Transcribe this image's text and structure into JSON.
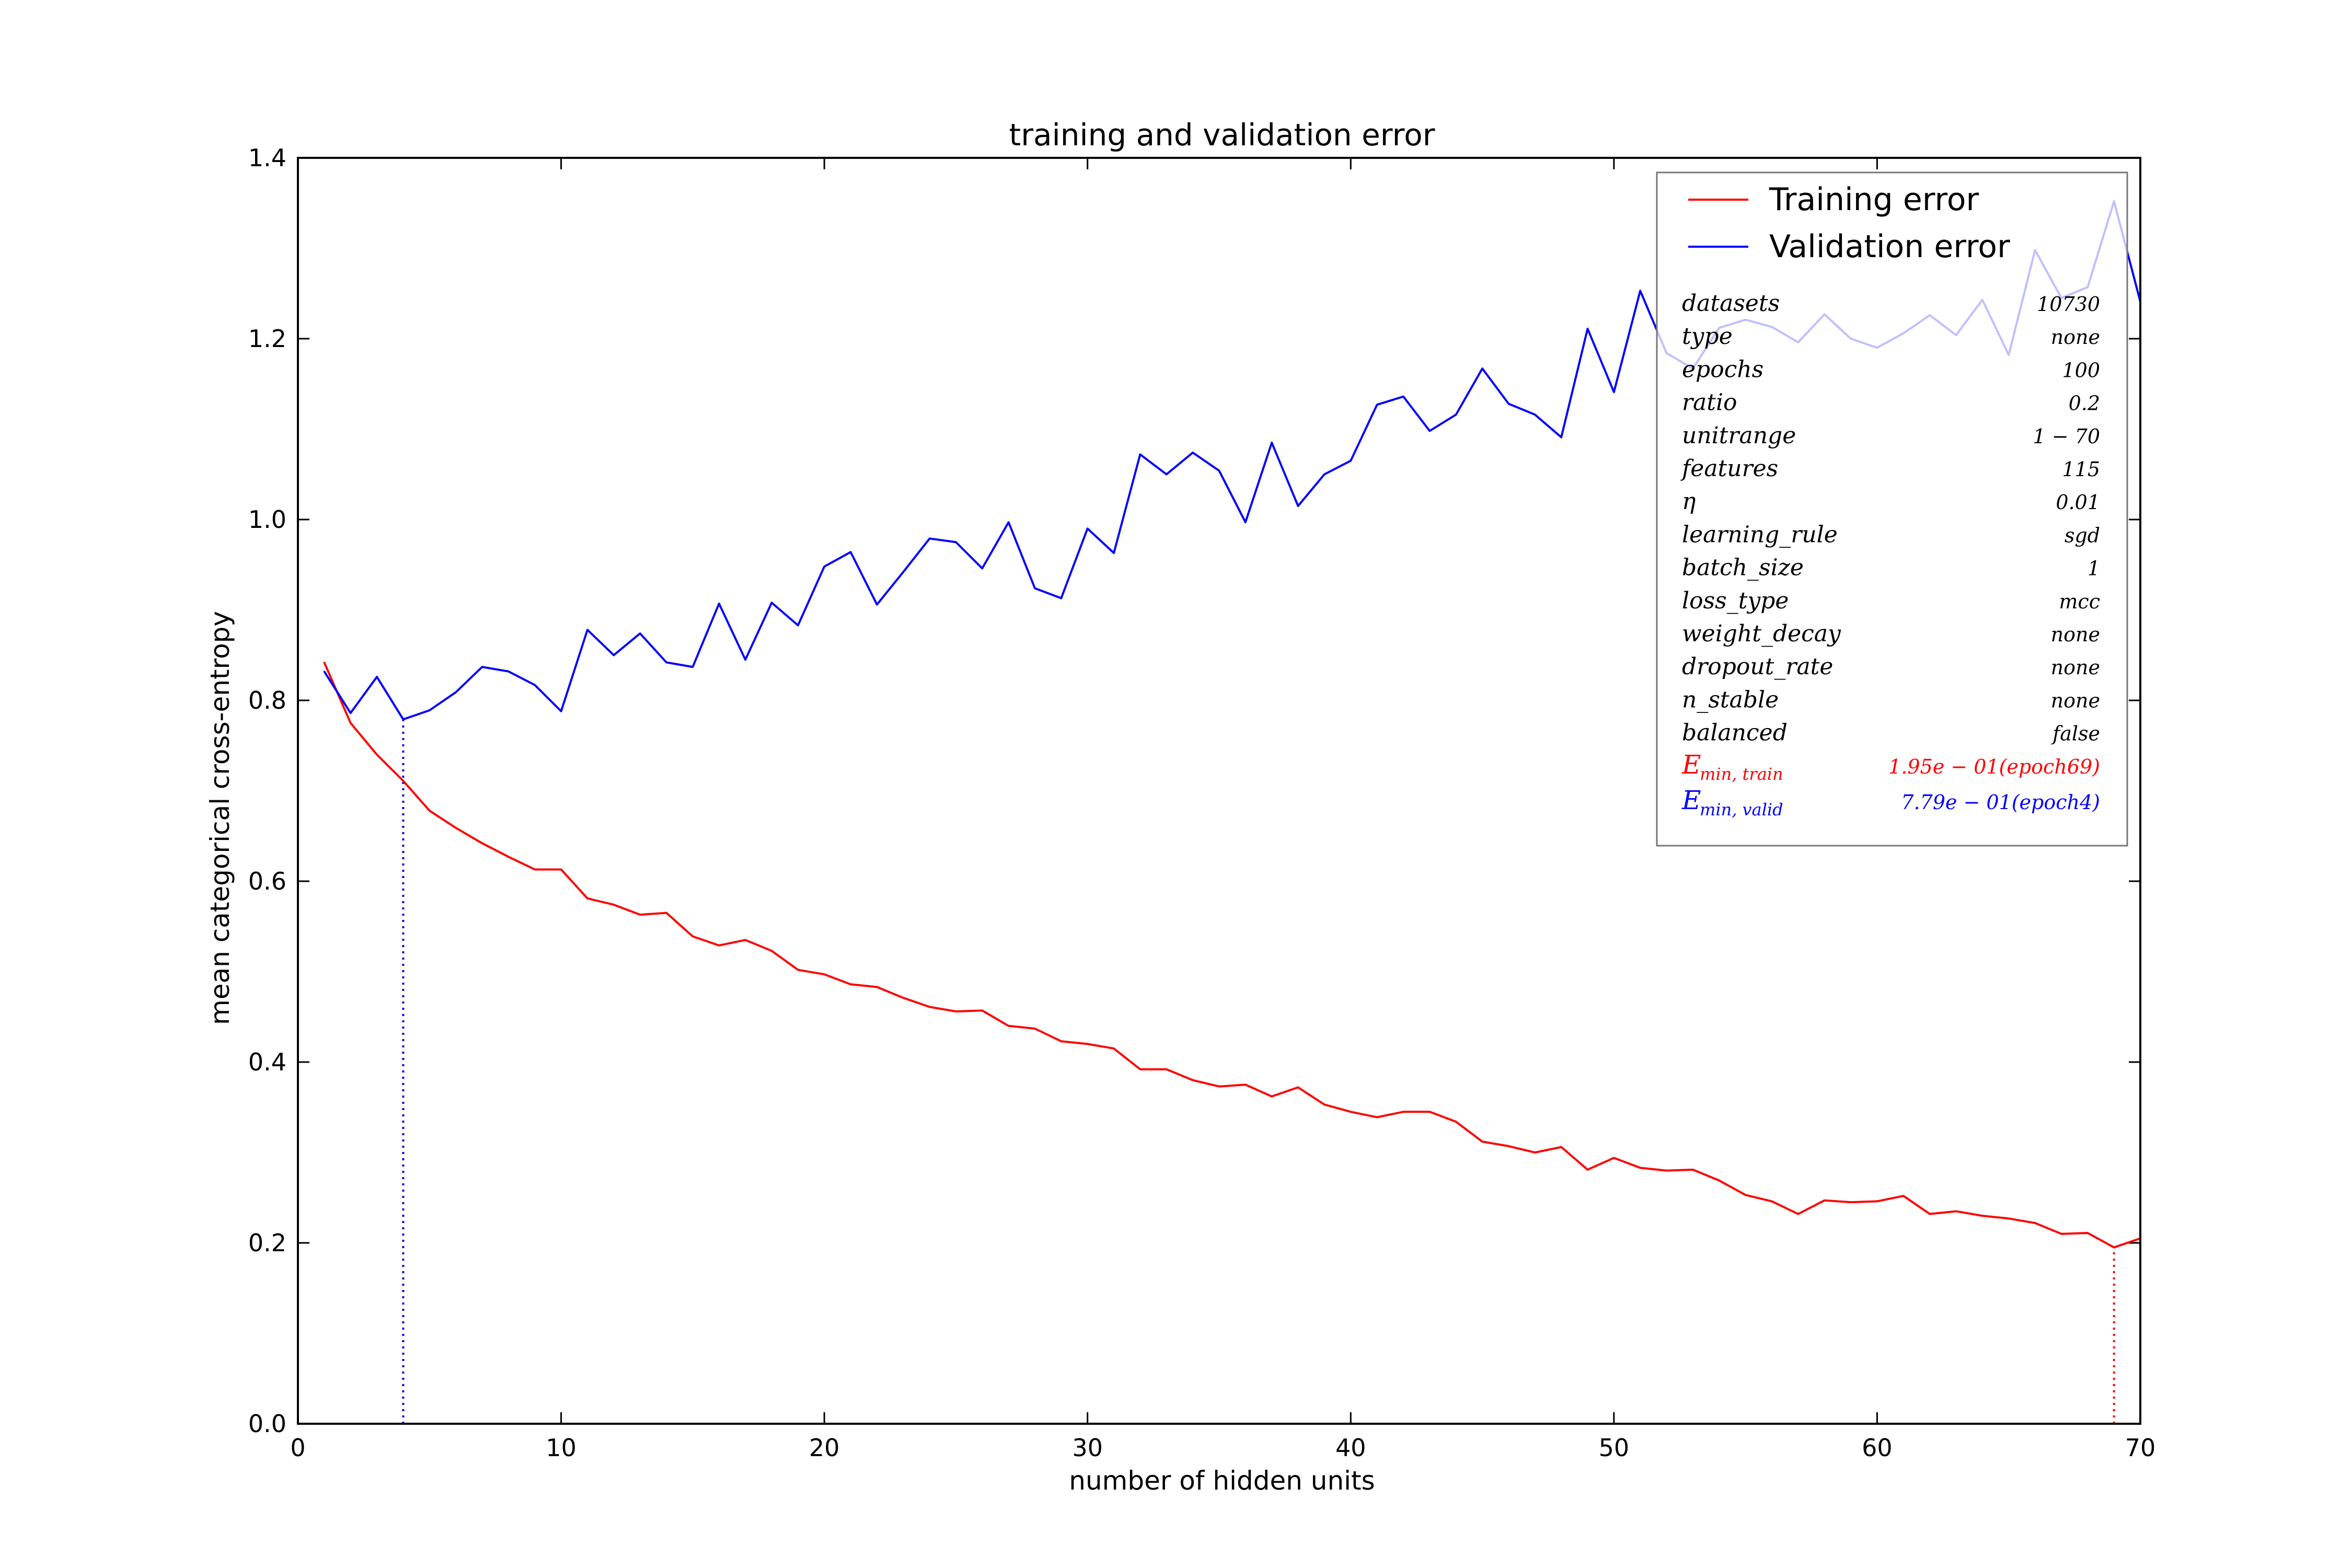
{
  "chart_data": {
    "type": "line",
    "title": "training and validation error",
    "xlabel": "number of hidden units",
    "ylabel": "mean categorical cross-entropy",
    "xlim": [
      0,
      70
    ],
    "ylim": [
      0.0,
      1.4
    ],
    "x_ticks": [
      0,
      10,
      20,
      30,
      40,
      50,
      60,
      70
    ],
    "x_tick_labels": [
      "0",
      "10",
      "20",
      "30",
      "40",
      "50",
      "60",
      "70"
    ],
    "y_ticks": [
      0.0,
      0.2,
      0.4,
      0.6,
      0.8,
      1.0,
      1.2,
      1.4
    ],
    "y_tick_labels": [
      "0.0",
      "0.2",
      "0.4",
      "0.6",
      "0.8",
      "1.0",
      "1.2",
      "1.4"
    ],
    "grid": false,
    "legend_placement": "top-right",
    "x": [
      1,
      2,
      3,
      4,
      5,
      6,
      7,
      8,
      9,
      10,
      11,
      12,
      13,
      14,
      15,
      16,
      17,
      18,
      19,
      20,
      21,
      22,
      23,
      24,
      25,
      26,
      27,
      28,
      29,
      30,
      31,
      32,
      33,
      34,
      35,
      36,
      37,
      38,
      39,
      40,
      41,
      42,
      43,
      44,
      45,
      46,
      47,
      48,
      49,
      50,
      51,
      52,
      53,
      54,
      55,
      56,
      57,
      58,
      59,
      60,
      61,
      62,
      63,
      64,
      65,
      66,
      67,
      68,
      69,
      70
    ],
    "series": [
      {
        "name": "Training error",
        "color": "#ff0000",
        "values": [
          0.842,
          0.775,
          0.74,
          0.711,
          0.678,
          0.659,
          0.642,
          0.627,
          0.613,
          0.613,
          0.581,
          0.574,
          0.563,
          0.565,
          0.539,
          0.529,
          0.535,
          0.523,
          0.502,
          0.497,
          0.486,
          0.483,
          0.471,
          0.461,
          0.456,
          0.457,
          0.44,
          0.437,
          0.423,
          0.42,
          0.415,
          0.392,
          0.392,
          0.38,
          0.373,
          0.375,
          0.362,
          0.372,
          0.353,
          0.345,
          0.339,
          0.345,
          0.345,
          0.334,
          0.312,
          0.307,
          0.3,
          0.306,
          0.281,
          0.294,
          0.283,
          0.28,
          0.281,
          0.269,
          0.253,
          0.246,
          0.232,
          0.247,
          0.245,
          0.246,
          0.252,
          0.232,
          0.235,
          0.23,
          0.227,
          0.222,
          0.21,
          0.211,
          0.195,
          0.205
        ]
      },
      {
        "name": "Validation error",
        "color": "#0000ff",
        "values": [
          0.832,
          0.786,
          0.826,
          0.779,
          0.789,
          0.809,
          0.837,
          0.832,
          0.817,
          0.788,
          0.878,
          0.85,
          0.874,
          0.842,
          0.837,
          0.907,
          0.845,
          0.908,
          0.883,
          0.948,
          0.964,
          0.906,
          0.942,
          0.979,
          0.975,
          0.946,
          0.997,
          0.924,
          0.913,
          0.99,
          0.963,
          1.072,
          1.05,
          1.074,
          1.054,
          0.997,
          1.085,
          1.015,
          1.05,
          1.065,
          1.127,
          1.136,
          1.098,
          1.116,
          1.167,
          1.128,
          1.116,
          1.091,
          1.211,
          1.141,
          1.253,
          1.184,
          1.167,
          1.212,
          1.221,
          1.213,
          1.196,
          1.227,
          1.2,
          1.19,
          1.206,
          1.226,
          1.204,
          1.243,
          1.182,
          1.298,
          1.245,
          1.257,
          1.352,
          1.241
        ]
      }
    ],
    "markers": [
      {
        "x": 4,
        "y": 0.779,
        "color": "#0000ff",
        "style": "dotted"
      },
      {
        "x": 69,
        "y": 0.195,
        "color": "#ff0000",
        "style": "dotted"
      }
    ],
    "legend_info": {
      "rows": [
        {
          "key": "datasets",
          "value": "10730"
        },
        {
          "key": "type",
          "value": "none"
        },
        {
          "key": "epochs",
          "value": "100"
        },
        {
          "key": "ratio",
          "value": "0.2"
        },
        {
          "key": "unitrange",
          "value": "1 − 70"
        },
        {
          "key": "features",
          "value": "115"
        },
        {
          "key": "η",
          "value": "0.01"
        },
        {
          "key": "learning_rule",
          "value": "sgd"
        },
        {
          "key": "batch_size",
          "value": "1"
        },
        {
          "key": "loss_type",
          "value": "mcc"
        },
        {
          "key": "weight_decay",
          "value": "none"
        },
        {
          "key": "dropout_rate",
          "value": "none"
        },
        {
          "key": "n_stable",
          "value": "none"
        },
        {
          "key": "balanced",
          "value": "false"
        }
      ],
      "min_train": {
        "key_main": "E",
        "key_sub": "min, train",
        "value": "1.95e − 01(epoch69)",
        "color": "#ff0000"
      },
      "min_valid": {
        "key_main": "E",
        "key_sub": "min, valid",
        "value": "7.79e − 01(epoch4)",
        "color": "#0000ff"
      }
    }
  }
}
